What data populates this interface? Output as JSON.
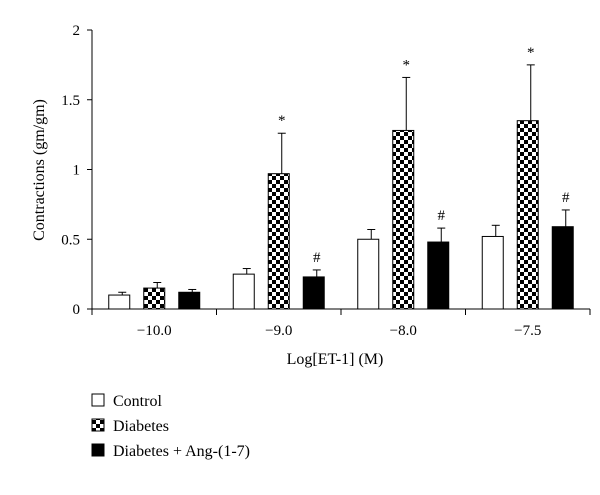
{
  "chart_data": {
    "type": "bar",
    "xlabel": "Log[ET-1] (M)",
    "ylabel": "Contractions (gm/gm)",
    "ylim": [
      0,
      2
    ],
    "yticks": [
      "0",
      "0.5",
      "1",
      "1.5",
      "2"
    ],
    "categories": [
      "−10.0",
      "−9.0",
      "−8.0",
      "−7.5"
    ],
    "legend_position": "bottom-left",
    "series": [
      {
        "name": "Control",
        "style": "white",
        "values": [
          0.1,
          0.25,
          0.5,
          0.52
        ],
        "errors": [
          0.02,
          0.04,
          0.07,
          0.08
        ],
        "markers": [
          "",
          "",
          "",
          ""
        ]
      },
      {
        "name": "Diabetes",
        "style": "checker",
        "values": [
          0.15,
          0.97,
          1.28,
          1.35
        ],
        "errors": [
          0.04,
          0.29,
          0.38,
          0.4
        ],
        "markers": [
          "",
          "*",
          "*",
          "*"
        ]
      },
      {
        "name": "Diabetes + Ang-(1-7)",
        "style": "black",
        "values": [
          0.12,
          0.23,
          0.48,
          0.59
        ],
        "errors": [
          0.02,
          0.05,
          0.1,
          0.12
        ],
        "markers": [
          "",
          "#",
          "#",
          "#"
        ]
      }
    ]
  }
}
